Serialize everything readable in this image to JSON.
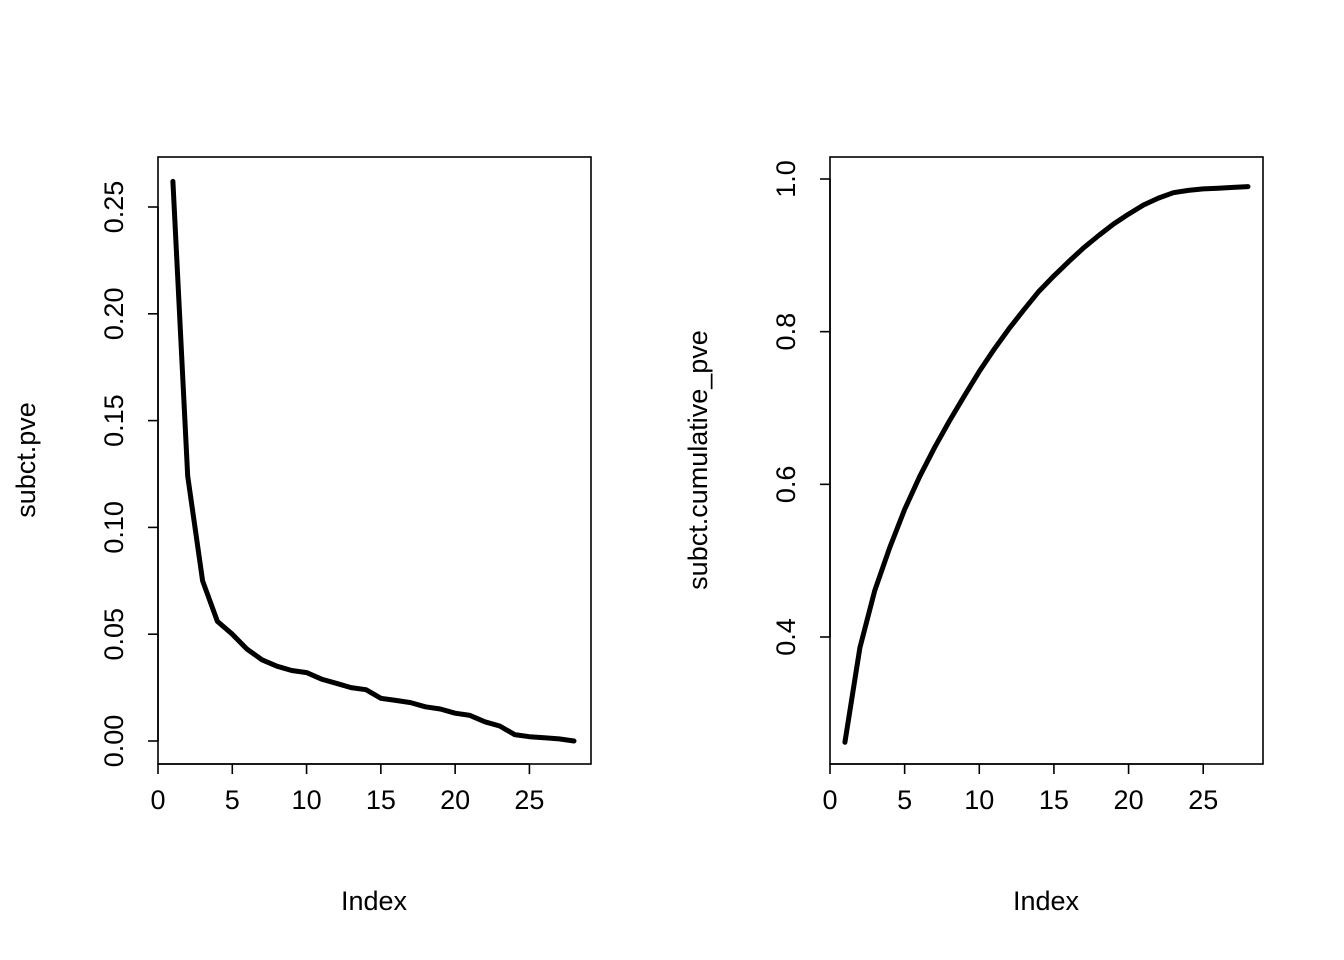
{
  "chart_data": [
    {
      "type": "line",
      "title": "",
      "xlabel": "Index",
      "ylabel": "subct.pve",
      "xlim": [
        0,
        28
      ],
      "ylim": [
        0.0,
        0.26
      ],
      "xticks": [
        0,
        5,
        10,
        15,
        20,
        25
      ],
      "xtick_labels": [
        "0",
        "5",
        "10",
        "15",
        "20",
        "25"
      ],
      "yticks": [
        0.0,
        0.05,
        0.1,
        0.15,
        0.2,
        0.25
      ],
      "ytick_labels": [
        "0.00",
        "0.05",
        "0.10",
        "0.15",
        "0.20",
        "0.25"
      ],
      "grid": false,
      "legend": "none",
      "series": [
        {
          "x": [
            1,
            2,
            3,
            4,
            5,
            6,
            7,
            8,
            9,
            10,
            11,
            12,
            13,
            14,
            15,
            16,
            17,
            18,
            19,
            20,
            21,
            22,
            23,
            24,
            25,
            26,
            27,
            28
          ],
          "values": [
            0.262,
            0.124,
            0.075,
            0.056,
            0.05,
            0.043,
            0.038,
            0.035,
            0.033,
            0.032,
            0.029,
            0.027,
            0.025,
            0.024,
            0.02,
            0.019,
            0.018,
            0.016,
            0.015,
            0.013,
            0.012,
            0.009,
            0.007,
            0.003,
            0.002,
            0.0015,
            0.001,
            0.0
          ]
        }
      ]
    },
    {
      "type": "line",
      "title": "",
      "xlabel": "Index",
      "ylabel": "subct.cumulative_pve",
      "xlim": [
        0,
        28
      ],
      "ylim": [
        0.25,
        1.0
      ],
      "xticks": [
        0,
        5,
        10,
        15,
        20,
        25
      ],
      "xtick_labels": [
        "0",
        "5",
        "10",
        "15",
        "20",
        "25"
      ],
      "yticks": [
        0.4,
        0.6,
        0.8,
        1.0
      ],
      "ytick_labels": [
        "0.4",
        "0.6",
        "0.8",
        "1.0"
      ],
      "grid": false,
      "legend": "none",
      "series": [
        {
          "x": [
            1,
            2,
            3,
            4,
            5,
            6,
            7,
            8,
            9,
            10,
            11,
            12,
            13,
            14,
            15,
            16,
            17,
            18,
            19,
            20,
            21,
            22,
            23,
            24,
            25,
            26,
            27,
            28
          ],
          "values": [
            0.262,
            0.386,
            0.461,
            0.517,
            0.567,
            0.61,
            0.648,
            0.683,
            0.716,
            0.748,
            0.777,
            0.804,
            0.829,
            0.853,
            0.873,
            0.892,
            0.91,
            0.926,
            0.941,
            0.954,
            0.966,
            0.975,
            0.982,
            0.985,
            0.987,
            0.988,
            0.989,
            0.99
          ]
        }
      ]
    }
  ]
}
